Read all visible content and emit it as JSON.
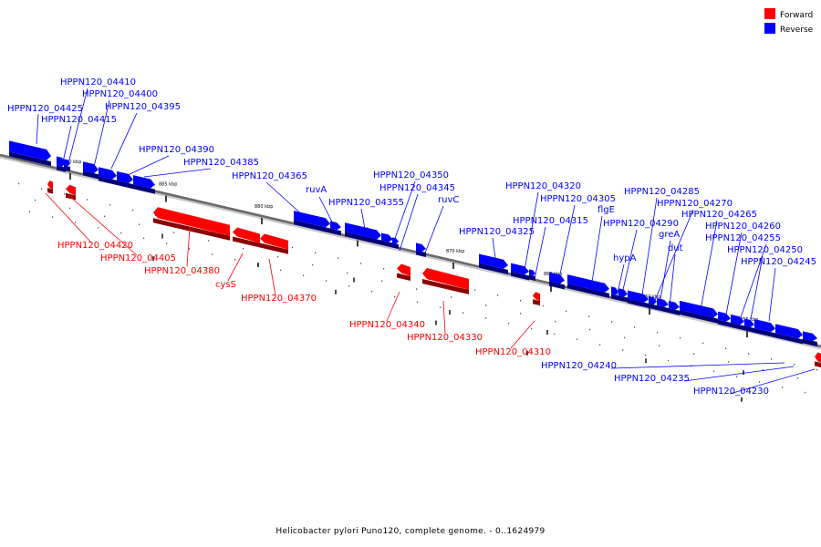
{
  "caption": "Helicobacter pylori Puno120, complete genome. - 0..1624979",
  "legend": [
    {
      "label": "Forward",
      "color": "#ff0000"
    },
    {
      "label": "Reverse",
      "color": "#0000ff"
    }
  ],
  "scale_labels": [
    "890 kbp",
    "885 kbp",
    "880 kbp",
    "875 kbp",
    "870 kbp",
    "865 kbp",
    "860 kbp",
    "855 kbp"
  ],
  "reverse_genes": [
    "HPPN120_04425",
    "HPPN120_04415",
    "HPPN120_04410",
    "HPPN120_04400",
    "HPPN120_04395",
    "HPPN120_04390",
    "HPPN120_04385",
    "HPPN120_04365",
    "ruvA",
    "HPPN120_04355",
    "HPPN120_04350",
    "HPPN120_04345",
    "ruvC",
    "HPPN120_04325",
    "HPPN120_04320",
    "HPPN120_04315",
    "HPPN120_04305",
    "flgE",
    "HPPN120_04290",
    "hypA",
    "HPPN120_04285",
    "HPPN120_04270",
    "greA",
    "dut",
    "HPPN120_04265",
    "HPPN120_04260",
    "HPPN120_04255",
    "HPPN120_04250",
    "HPPN120_04245",
    "HPPN120_04240",
    "HPPN120_04235",
    "HPPN120_04230"
  ],
  "forward_genes": [
    "HPPN120_04420",
    "HPPN120_04405",
    "HPPN120_04380",
    "cysS",
    "HPPN120_04370",
    "HPPN120_04340",
    "HPPN120_04330",
    "HPPN120_04310"
  ]
}
